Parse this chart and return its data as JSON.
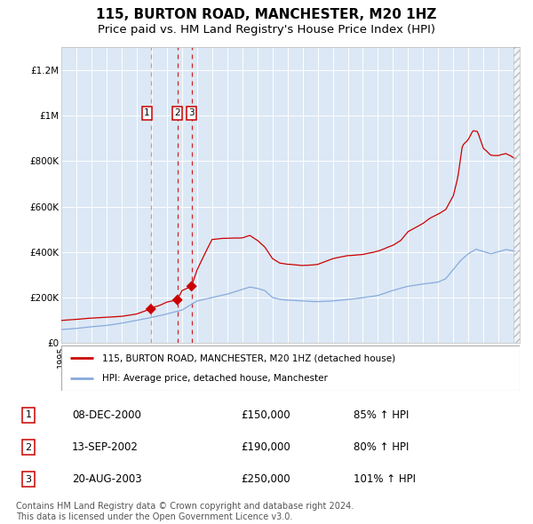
{
  "title": "115, BURTON ROAD, MANCHESTER, M20 1HZ",
  "subtitle": "Price paid vs. HM Land Registry's House Price Index (HPI)",
  "title_fontsize": 11,
  "subtitle_fontsize": 9.5,
  "background_color": "#dce8f5",
  "outer_bg_color": "#ffffff",
  "red_line_color": "#cc0000",
  "blue_line_color": "#88aadd",
  "sale_marker_color": "#cc0000",
  "ylim": [
    0,
    1300000
  ],
  "yticks": [
    0,
    200000,
    400000,
    600000,
    800000,
    1000000,
    1200000
  ],
  "ytick_labels": [
    "£0",
    "£200K",
    "£400K",
    "£600K",
    "£800K",
    "£1M",
    "£1.2M"
  ],
  "legend_entries": [
    "115, BURTON ROAD, MANCHESTER, M20 1HZ (detached house)",
    "HPI: Average price, detached house, Manchester"
  ],
  "sales": [
    {
      "date_label": "1",
      "x": 2000.94,
      "price": 150000,
      "hpi_pct": "85% ↑ HPI",
      "display": "08-DEC-2000",
      "price_display": "£150,000"
    },
    {
      "date_label": "2",
      "x": 2002.7,
      "price": 190000,
      "hpi_pct": "80% ↑ HPI",
      "display": "13-SEP-2002",
      "price_display": "£190,000"
    },
    {
      "date_label": "3",
      "x": 2003.64,
      "price": 250000,
      "hpi_pct": "101% ↑ HPI",
      "display": "20-AUG-2003",
      "price_display": "£250,000"
    }
  ],
  "sale1_vline_color": "#888888",
  "sale23_vline_color": "#cc0000",
  "footer": "Contains HM Land Registry data © Crown copyright and database right 2024.\nThis data is licensed under the Open Government Licence v3.0.",
  "footer_fontsize": 7.0,
  "red_anchors_x": [
    1995,
    1996,
    1997,
    1998,
    1999,
    2000,
    2000.94,
    2001,
    2001.5,
    2002,
    2002.7,
    2003,
    2003.64,
    2004,
    2004.5,
    2005,
    2006,
    2007,
    2007.5,
    2008,
    2008.5,
    2009,
    2009.5,
    2010,
    2011,
    2012,
    2013,
    2014,
    2015,
    2016,
    2017,
    2017.5,
    2018,
    2018.5,
    2019,
    2019.5,
    2020,
    2020.5,
    2021,
    2021.3,
    2021.6,
    2022,
    2022.3,
    2022.6,
    2023,
    2023.5,
    2024,
    2024.5,
    2025.1
  ],
  "red_anchors_y": [
    100000,
    105000,
    110000,
    115000,
    118000,
    128000,
    150000,
    155000,
    165000,
    180000,
    190000,
    230000,
    250000,
    320000,
    390000,
    455000,
    460000,
    460000,
    470000,
    450000,
    420000,
    370000,
    350000,
    345000,
    340000,
    345000,
    370000,
    385000,
    390000,
    405000,
    430000,
    450000,
    490000,
    510000,
    530000,
    555000,
    570000,
    590000,
    650000,
    730000,
    870000,
    900000,
    940000,
    935000,
    860000,
    830000,
    830000,
    840000,
    820000
  ],
  "blue_anchors_x": [
    1995,
    1996,
    1997,
    1998,
    1999,
    2000,
    2001,
    2002,
    2003,
    2004,
    2005,
    2006,
    2007,
    2007.5,
    2008,
    2008.5,
    2009,
    2009.5,
    2010,
    2011,
    2012,
    2013,
    2014,
    2015,
    2016,
    2017,
    2018,
    2019,
    2020,
    2020.5,
    2021,
    2021.5,
    2022,
    2022.5,
    2023,
    2023.5,
    2024,
    2024.5,
    2025.1
  ],
  "blue_anchors_y": [
    60000,
    65000,
    72000,
    78000,
    88000,
    100000,
    113000,
    128000,
    145000,
    185000,
    200000,
    215000,
    235000,
    245000,
    240000,
    230000,
    200000,
    192000,
    188000,
    185000,
    182000,
    185000,
    192000,
    200000,
    210000,
    232000,
    250000,
    262000,
    270000,
    285000,
    325000,
    365000,
    395000,
    415000,
    405000,
    395000,
    405000,
    415000,
    408000
  ]
}
